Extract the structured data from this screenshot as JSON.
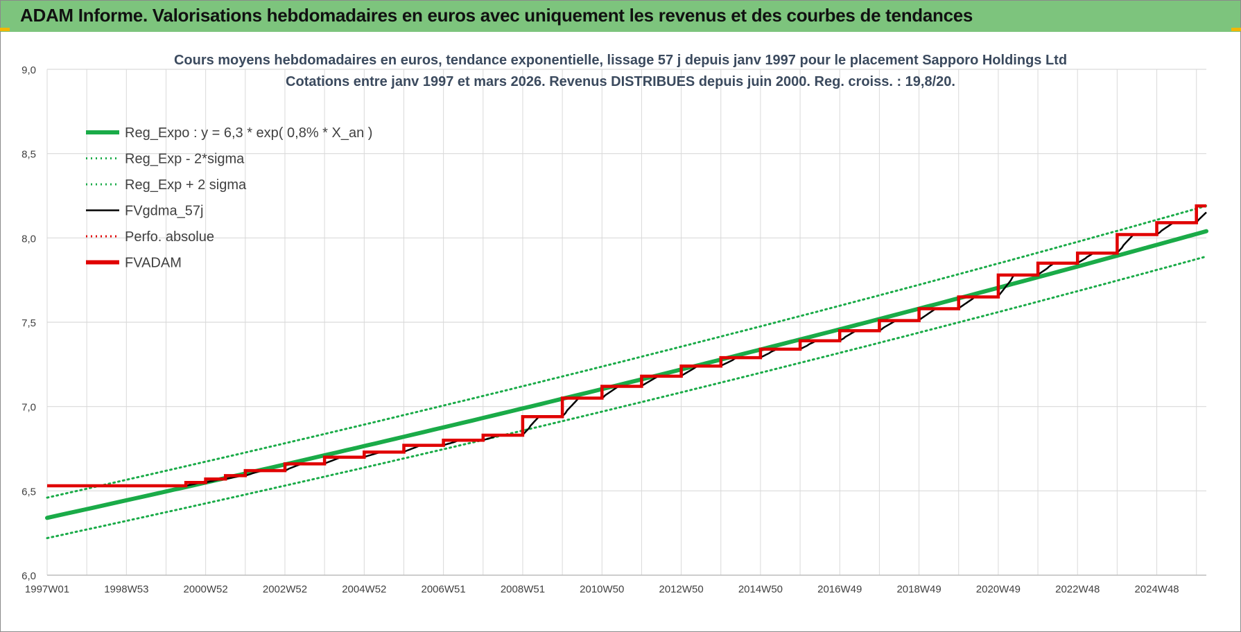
{
  "header": {
    "title": "ADAM Informe. Valorisations hebdomadaires en euros avec uniquement les revenus et des courbes de tendances"
  },
  "colors": {
    "header_bg": "#7dc47d",
    "trend": "#1aab48",
    "fvgdma": "#000000",
    "fvadam": "#e00000",
    "grid": "#d9d9d9"
  },
  "chart_data": {
    "type": "line",
    "title": "Cours moyens hebdomadaires en euros, tendance exponentielle, lissage 57 j depuis janv 1997 pour le placement Sapporo Holdings Ltd",
    "subtitle": "Cotations entre janv 1997 et mars 2026. Revenus DISTRIBUES depuis juin 2000. Reg. croiss. : 19,8/20.",
    "xlabel": "",
    "ylabel": "",
    "x_range": [
      1997.0,
      2026.25
    ],
    "ylim": [
      6.0,
      9.0
    ],
    "y_ticks": [
      "6,0",
      "6,5",
      "7,0",
      "7,5",
      "8,0",
      "8,5",
      "9,0"
    ],
    "y_tick_values": [
      6.0,
      6.5,
      7.0,
      7.5,
      8.0,
      8.5,
      9.0
    ],
    "x_tick_labels": [
      "1997W01",
      "1998W53",
      "2000W52",
      "2002W52",
      "2004W52",
      "2006W51",
      "2008W51",
      "2010W50",
      "2012W50",
      "2014W50",
      "2016W49",
      "2018W49",
      "2020W49",
      "2022W48",
      "2024W48"
    ],
    "x_tick_values": [
      1997.0,
      1999.0,
      2001.0,
      2003.0,
      2005.0,
      2007.0,
      2009.0,
      2011.0,
      2013.0,
      2015.0,
      2017.0,
      2019.0,
      2021.0,
      2023.0,
      2025.0
    ],
    "grid": true,
    "legend_position": "top-left",
    "legend": [
      {
        "label": "Reg_Expo : y = 6,3 * exp( 0,8% *  X_an )",
        "style": "solid-thick",
        "color": "#1aab48"
      },
      {
        "label": "Reg_Exp - 2*sigma",
        "style": "dotted",
        "color": "#1aab48"
      },
      {
        "label": "Reg_Exp + 2 sigma",
        "style": "dotted",
        "color": "#1aab48"
      },
      {
        "label": "FVgdma_57j",
        "style": "solid",
        "color": "#000000"
      },
      {
        "label": "Perfo. absolue",
        "style": "dotted",
        "color": "#e00000"
      },
      {
        "label": "FVADAM",
        "style": "solid-thick",
        "color": "#e00000"
      }
    ],
    "series": [
      {
        "name": "Reg_Expo : y = 6,3 * exp( 0,8% *  X_an )",
        "x": [
          1997.0,
          2026.25
        ],
        "values": [
          6.34,
          8.04
        ],
        "curve": "exponential"
      },
      {
        "name": "Reg_Exp - 2*sigma",
        "x": [
          1997.0,
          2026.25
        ],
        "values": [
          6.22,
          7.89
        ],
        "curve": "exponential"
      },
      {
        "name": "Reg_Exp + 2 sigma",
        "x": [
          1997.0,
          2026.25
        ],
        "values": [
          6.46,
          8.19
        ],
        "curve": "exponential"
      },
      {
        "name": "FVADAM",
        "step_x": [
          1997.0,
          2000.5,
          2001.0,
          2001.5,
          2002.0,
          2003.0,
          2004.0,
          2005.0,
          2006.0,
          2007.0,
          2008.0,
          2009.0,
          2010.0,
          2011.0,
          2012.0,
          2013.0,
          2014.0,
          2015.0,
          2016.0,
          2017.0,
          2018.0,
          2019.0,
          2020.0,
          2021.0,
          2022.0,
          2023.0,
          2024.0,
          2025.0,
          2026.0,
          2026.25
        ],
        "step_values": [
          6.53,
          6.55,
          6.57,
          6.59,
          6.62,
          6.66,
          6.7,
          6.73,
          6.77,
          6.8,
          6.83,
          6.94,
          7.05,
          7.12,
          7.18,
          7.24,
          7.29,
          7.34,
          7.39,
          7.45,
          7.51,
          7.58,
          7.65,
          7.78,
          7.85,
          7.91,
          8.02,
          8.09,
          8.19,
          8.19
        ]
      },
      {
        "name": "FVgdma_57j",
        "smoothed_from": "FVADAM",
        "smoothing_years": 0.4
      }
    ]
  }
}
